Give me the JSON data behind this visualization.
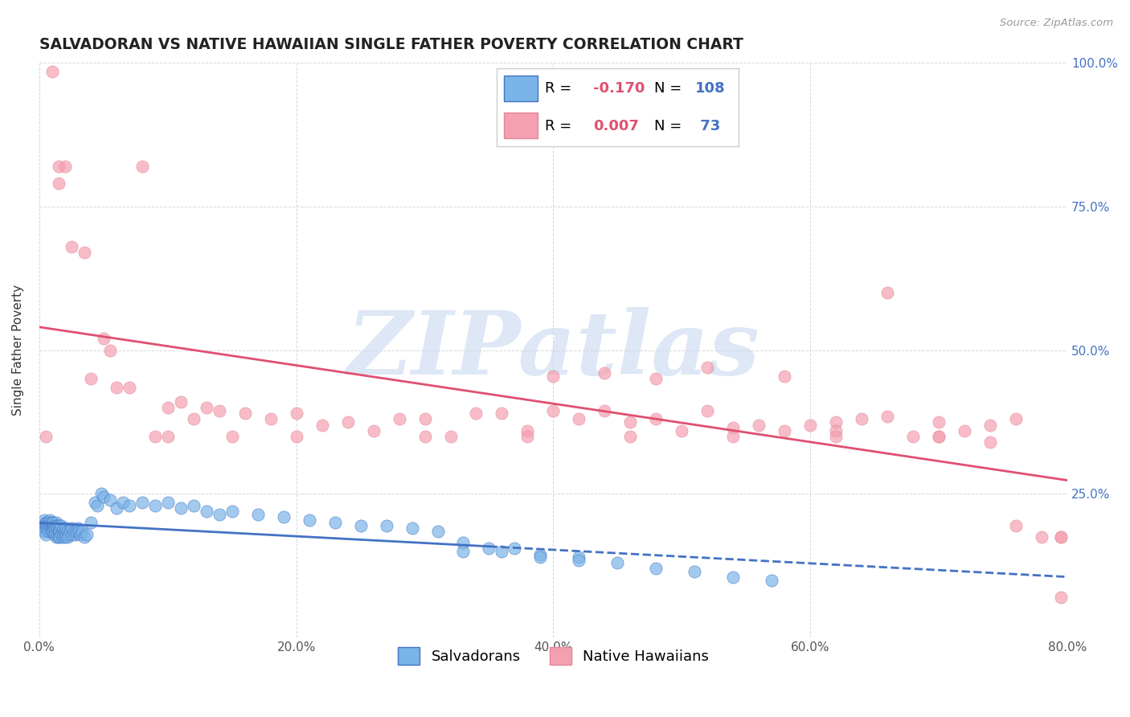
{
  "title": "SALVADORAN VS NATIVE HAWAIIAN SINGLE FATHER POVERTY CORRELATION CHART",
  "source": "Source: ZipAtlas.com",
  "xlabel_salvadoran": "Salvadorans",
  "xlabel_hawaiian": "Native Hawaiians",
  "ylabel": "Single Father Poverty",
  "R_salvadoran": -0.17,
  "N_salvadoran": 108,
  "R_hawaiian": 0.007,
  "N_hawaiian": 73,
  "xlim": [
    0.0,
    0.8
  ],
  "ylim": [
    0.0,
    1.0
  ],
  "xticks": [
    0.0,
    0.2,
    0.4,
    0.6,
    0.8
  ],
  "xticklabels": [
    "0.0%",
    "20.0%",
    "40.0%",
    "60.0%",
    "80.0%"
  ],
  "yticks": [
    0.0,
    0.25,
    0.5,
    0.75,
    1.0
  ],
  "yticklabels_right": [
    "",
    "25.0%",
    "50.0%",
    "75.0%",
    "100.0%"
  ],
  "color_salvadoran": "#7ab4e8",
  "color_hawaiian": "#f4a0b0",
  "trendline_salvadoran": "#4472c4",
  "trendline_hawaiian": "#e05070",
  "watermark": "ZIPatlas",
  "watermark_color": "#c8d8f0",
  "background_color": "#ffffff",
  "grid_color": "#d8d8d8",
  "blue_x": [
    0.002,
    0.003,
    0.004,
    0.004,
    0.005,
    0.005,
    0.005,
    0.006,
    0.006,
    0.006,
    0.007,
    0.007,
    0.007,
    0.007,
    0.008,
    0.008,
    0.008,
    0.009,
    0.009,
    0.009,
    0.01,
    0.01,
    0.01,
    0.01,
    0.011,
    0.011,
    0.011,
    0.011,
    0.012,
    0.012,
    0.012,
    0.012,
    0.013,
    0.013,
    0.013,
    0.014,
    0.014,
    0.014,
    0.015,
    0.015,
    0.015,
    0.016,
    0.016,
    0.016,
    0.017,
    0.017,
    0.018,
    0.018,
    0.019,
    0.019,
    0.02,
    0.02,
    0.021,
    0.021,
    0.022,
    0.022,
    0.023,
    0.024,
    0.025,
    0.026,
    0.027,
    0.028,
    0.029,
    0.03,
    0.031,
    0.032,
    0.033,
    0.035,
    0.037,
    0.04,
    0.043,
    0.045,
    0.048,
    0.05,
    0.055,
    0.06,
    0.065,
    0.07,
    0.08,
    0.09,
    0.1,
    0.11,
    0.12,
    0.13,
    0.14,
    0.15,
    0.17,
    0.19,
    0.21,
    0.23,
    0.25,
    0.27,
    0.29,
    0.31,
    0.33,
    0.35,
    0.37,
    0.39,
    0.42,
    0.45,
    0.48,
    0.51,
    0.54,
    0.57,
    0.33,
    0.36,
    0.39,
    0.42
  ],
  "blue_y": [
    0.195,
    0.19,
    0.205,
    0.185,
    0.2,
    0.195,
    0.18,
    0.2,
    0.195,
    0.19,
    0.2,
    0.195,
    0.19,
    0.185,
    0.2,
    0.205,
    0.195,
    0.19,
    0.2,
    0.185,
    0.19,
    0.195,
    0.2,
    0.185,
    0.195,
    0.19,
    0.2,
    0.185,
    0.195,
    0.185,
    0.19,
    0.18,
    0.2,
    0.195,
    0.175,
    0.195,
    0.19,
    0.18,
    0.185,
    0.195,
    0.175,
    0.19,
    0.185,
    0.175,
    0.18,
    0.195,
    0.185,
    0.175,
    0.19,
    0.18,
    0.185,
    0.175,
    0.19,
    0.18,
    0.185,
    0.175,
    0.18,
    0.185,
    0.19,
    0.18,
    0.185,
    0.18,
    0.185,
    0.19,
    0.185,
    0.18,
    0.185,
    0.175,
    0.18,
    0.2,
    0.235,
    0.23,
    0.25,
    0.245,
    0.24,
    0.225,
    0.235,
    0.23,
    0.235,
    0.23,
    0.235,
    0.225,
    0.23,
    0.22,
    0.215,
    0.22,
    0.215,
    0.21,
    0.205,
    0.2,
    0.195,
    0.195,
    0.19,
    0.185,
    0.165,
    0.155,
    0.155,
    0.145,
    0.14,
    0.13,
    0.12,
    0.115,
    0.105,
    0.1,
    0.15,
    0.15,
    0.14,
    0.135
  ],
  "pink_x": [
    0.005,
    0.01,
    0.015,
    0.02,
    0.015,
    0.025,
    0.035,
    0.04,
    0.05,
    0.055,
    0.06,
    0.07,
    0.08,
    0.09,
    0.1,
    0.11,
    0.12,
    0.13,
    0.14,
    0.16,
    0.18,
    0.2,
    0.22,
    0.24,
    0.26,
    0.28,
    0.3,
    0.32,
    0.34,
    0.36,
    0.38,
    0.4,
    0.42,
    0.44,
    0.46,
    0.48,
    0.5,
    0.52,
    0.54,
    0.56,
    0.58,
    0.6,
    0.62,
    0.64,
    0.66,
    0.68,
    0.7,
    0.72,
    0.74,
    0.76,
    0.78,
    0.795,
    0.795,
    0.58,
    0.62,
    0.66,
    0.7,
    0.74,
    0.4,
    0.44,
    0.48,
    0.52,
    0.1,
    0.15,
    0.2,
    0.3,
    0.38,
    0.46,
    0.54,
    0.62,
    0.7,
    0.76,
    0.795
  ],
  "pink_y": [
    0.35,
    0.985,
    0.82,
    0.82,
    0.79,
    0.68,
    0.67,
    0.45,
    0.52,
    0.5,
    0.435,
    0.435,
    0.82,
    0.35,
    0.4,
    0.41,
    0.38,
    0.4,
    0.395,
    0.39,
    0.38,
    0.39,
    0.37,
    0.375,
    0.36,
    0.38,
    0.38,
    0.35,
    0.39,
    0.39,
    0.36,
    0.395,
    0.38,
    0.395,
    0.375,
    0.38,
    0.36,
    0.395,
    0.365,
    0.37,
    0.36,
    0.37,
    0.375,
    0.38,
    0.385,
    0.35,
    0.375,
    0.36,
    0.37,
    0.38,
    0.175,
    0.175,
    0.07,
    0.455,
    0.36,
    0.6,
    0.35,
    0.34,
    0.455,
    0.46,
    0.45,
    0.47,
    0.35,
    0.35,
    0.35,
    0.35,
    0.35,
    0.35,
    0.35,
    0.35,
    0.35,
    0.195,
    0.175
  ]
}
